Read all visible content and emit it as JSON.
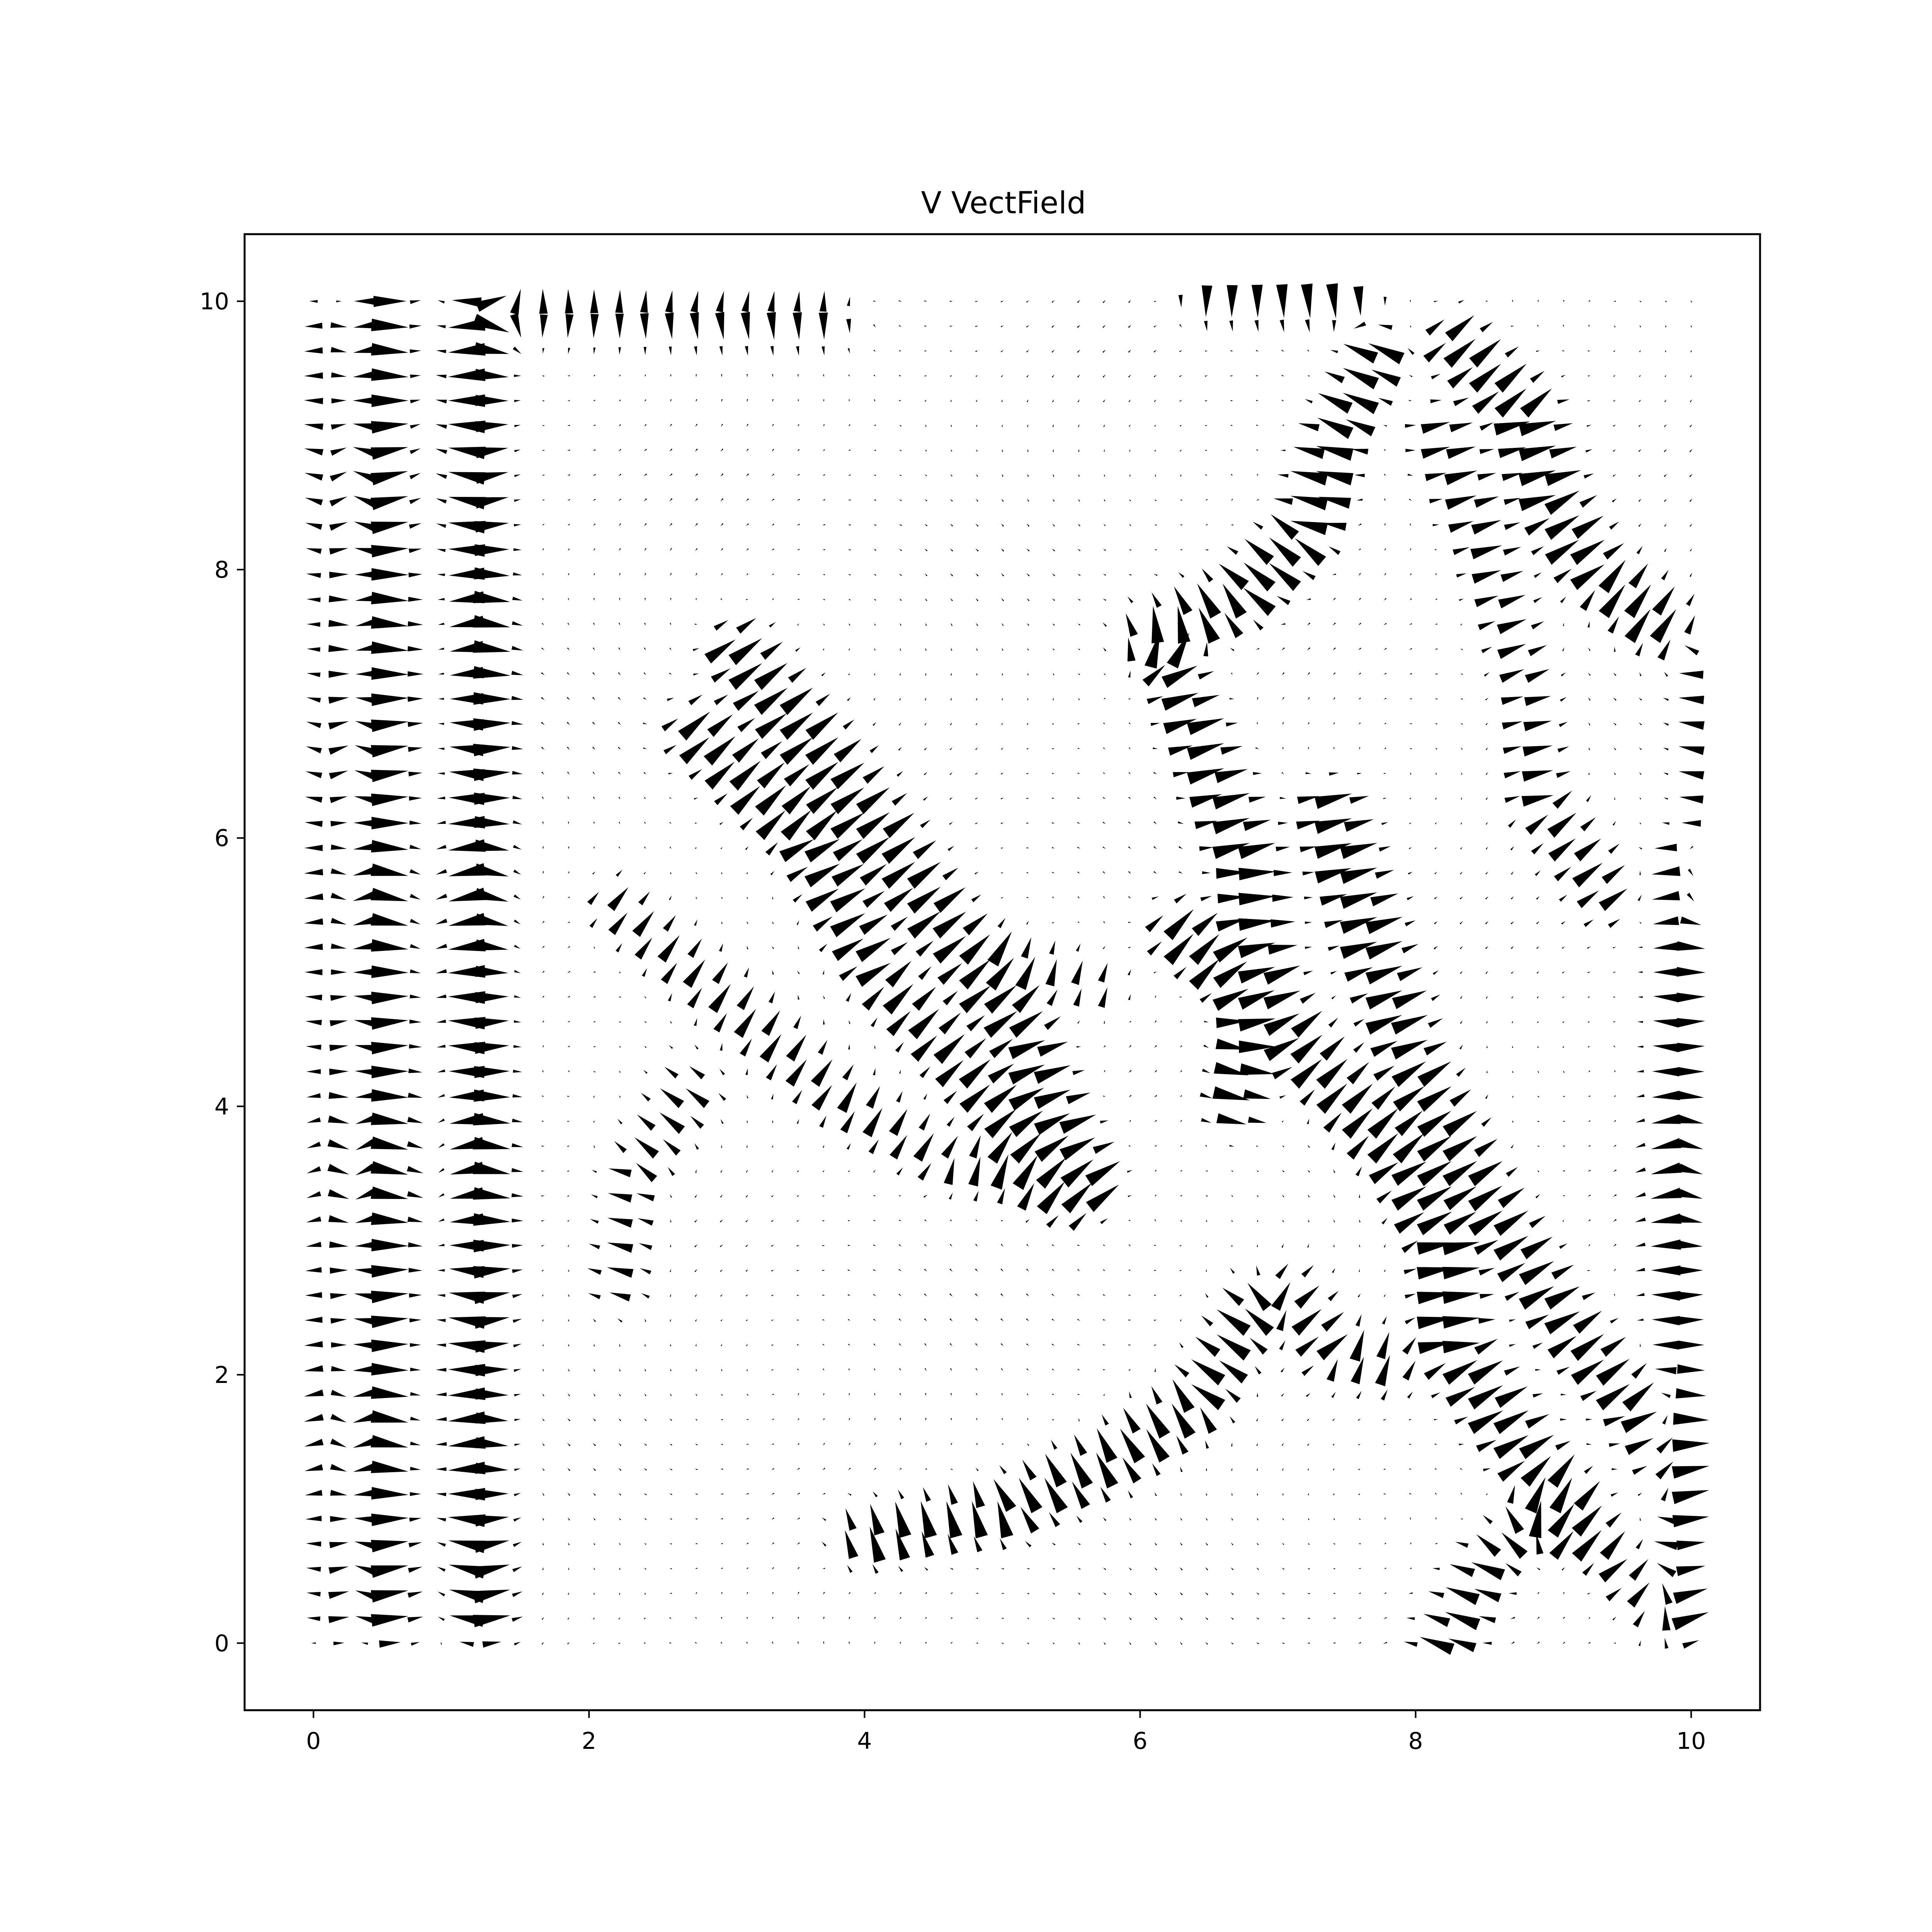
{
  "chart_data": {
    "type": "quiver",
    "title": "V VectField",
    "xlabel": "",
    "ylabel": "",
    "xlim": [
      -0.5,
      10.5
    ],
    "ylim": [
      -0.5,
      10.5
    ],
    "xticks": [
      0,
      2,
      4,
      6,
      8,
      10
    ],
    "yticks": [
      0,
      2,
      4,
      6,
      8,
      10
    ],
    "xtick_labels": [
      "0",
      "2",
      "4",
      "6",
      "8",
      "10"
    ],
    "ytick_labels": [
      "0",
      "2",
      "4",
      "6",
      "8",
      "10"
    ],
    "grid": false,
    "legend": "none",
    "arrow_color": "#000000",
    "sample_grid": {
      "xmin": 0,
      "xmax": 10,
      "ymin": 0,
      "ymax": 10,
      "nx": 55,
      "ny": 55
    },
    "structures": [
      {
        "kind": "vertical_band",
        "x": 0.15,
        "y0": 0.2,
        "y1": 9.8,
        "strength": 0.35
      },
      {
        "kind": "vertical_band",
        "x": 0.5,
        "y0": 0.2,
        "y1": 9.9,
        "strength": 0.6
      },
      {
        "kind": "vertical_band",
        "x": 1.2,
        "y0": 0.2,
        "y1": 9.9,
        "strength": 0.6
      },
      {
        "kind": "curve",
        "points": [
          [
            3.1,
            7.4
          ],
          [
            3.8,
            6.5
          ],
          [
            4.5,
            5.5
          ],
          [
            5.2,
            4.5
          ],
          [
            5.6,
            3.5
          ]
        ],
        "strength": 0.7
      },
      {
        "kind": "curve",
        "points": [
          [
            2.8,
            6.8
          ],
          [
            3.6,
            6.0
          ],
          [
            4.1,
            5.0
          ],
          [
            4.8,
            4.2
          ],
          [
            5.5,
            3.4
          ]
        ],
        "strength": 0.6
      },
      {
        "kind": "curve",
        "points": [
          [
            2.2,
            5.5
          ],
          [
            3.0,
            4.8
          ],
          [
            3.8,
            4.1
          ],
          [
            4.6,
            3.6
          ],
          [
            5.5,
            3.4
          ]
        ],
        "strength": 0.45
      },
      {
        "kind": "curve",
        "points": [
          [
            2.2,
            2.7
          ],
          [
            2.3,
            3.5
          ],
          [
            2.7,
            4.1
          ]
        ],
        "strength": 0.4
      },
      {
        "kind": "curve",
        "points": [
          [
            6.1,
            7.5
          ],
          [
            6.7,
            7.8
          ],
          [
            7.2,
            8.3
          ],
          [
            7.4,
            9.0
          ],
          [
            7.7,
            9.6
          ]
        ],
        "strength": 0.7
      },
      {
        "kind": "curve",
        "points": [
          [
            6.2,
            7.4
          ],
          [
            6.5,
            6.6
          ],
          [
            6.8,
            5.8
          ],
          [
            6.9,
            5.0
          ],
          [
            6.7,
            4.0
          ]
        ],
        "strength": 0.6
      },
      {
        "kind": "curve",
        "points": [
          [
            6.3,
            5.3
          ],
          [
            6.9,
            4.8
          ],
          [
            7.4,
            4.2
          ],
          [
            7.9,
            3.6
          ],
          [
            8.2,
            3.0
          ],
          [
            8.3,
            2.2
          ],
          [
            8.7,
            1.6
          ],
          [
            9.1,
            1.0
          ]
        ],
        "strength": 0.7
      },
      {
        "kind": "curve",
        "points": [
          [
            7.4,
            6.2
          ],
          [
            7.7,
            5.2
          ],
          [
            8.0,
            4.3
          ],
          [
            8.5,
            3.4
          ],
          [
            9.1,
            2.4
          ],
          [
            9.6,
            1.8
          ],
          [
            9.9,
            1.2
          ]
        ],
        "strength": 0.65
      },
      {
        "kind": "curve",
        "points": [
          [
            8.3,
            9.7
          ],
          [
            8.8,
            9.2
          ],
          [
            9.0,
            8.5
          ],
          [
            9.3,
            8.0
          ],
          [
            9.8,
            7.6
          ]
        ],
        "strength": 0.65
      },
      {
        "kind": "curve",
        "points": [
          [
            8.2,
            9.0
          ],
          [
            8.5,
            8.2
          ],
          [
            8.8,
            7.2
          ],
          [
            8.9,
            6.3
          ],
          [
            9.4,
            5.6
          ]
        ],
        "strength": 0.45
      },
      {
        "kind": "curve",
        "points": [
          [
            4.0,
            0.8
          ],
          [
            5.0,
            1.0
          ],
          [
            5.8,
            1.4
          ],
          [
            6.4,
            1.8
          ],
          [
            6.8,
            2.5
          ]
        ],
        "strength": 0.6
      },
      {
        "kind": "curve",
        "points": [
          [
            9.0,
            1.0
          ],
          [
            9.4,
            0.7
          ],
          [
            9.8,
            0.2
          ]
        ],
        "strength": 0.5
      },
      {
        "kind": "curve",
        "points": [
          [
            8.2,
            0.0
          ],
          [
            8.5,
            0.6
          ],
          [
            9.0,
            1.1
          ]
        ],
        "strength": 0.5
      },
      {
        "kind": "vertical_band",
        "x": 9.9,
        "y0": 0.2,
        "y1": 5.8,
        "strength": 0.45
      },
      {
        "kind": "vertical_band",
        "x": 10.2,
        "y0": 5.6,
        "y1": 7.3,
        "strength": 0.7
      },
      {
        "kind": "horizontal_band",
        "y": 9.9,
        "x0": 1.5,
        "x1": 3.7,
        "strength": 0.4
      },
      {
        "kind": "horizontal_band",
        "y": 10.05,
        "x0": 6.5,
        "x1": 7.5,
        "strength": 0.5
      },
      {
        "kind": "curve",
        "points": [
          [
            5.0,
            5.1
          ],
          [
            5.4,
            5.0
          ],
          [
            5.7,
            4.9
          ]
        ],
        "strength": 0.4
      },
      {
        "kind": "curve",
        "points": [
          [
            7.1,
            2.6
          ],
          [
            7.4,
            2.2
          ],
          [
            7.8,
            2.1
          ]
        ],
        "strength": 0.45
      }
    ]
  }
}
